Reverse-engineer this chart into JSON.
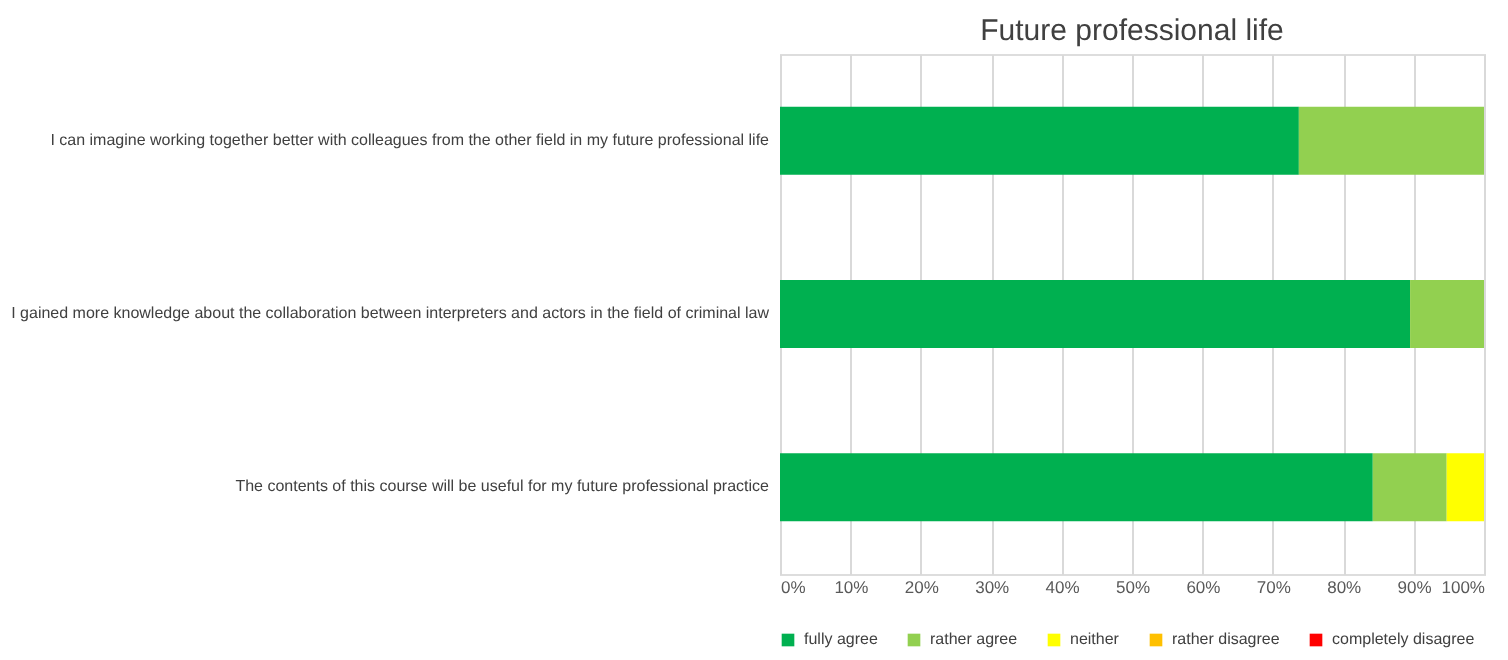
{
  "chart_data": {
    "type": "bar",
    "orientation": "horizontal",
    "stacked": true,
    "title": "Future professional life",
    "categories": [
      "I can imagine working together better with colleagues from the other field in my future professional life",
      "I gained more knowledge about the collaboration between interpreters and actors in the field of criminal law",
      "The contents of this course will be useful for my future professional practice"
    ],
    "series": [
      {
        "name": "fully agree",
        "color": "#00b050",
        "values": [
          73.7,
          89.5,
          84.2
        ]
      },
      {
        "name": "rather agree",
        "color": "#92d050",
        "values": [
          26.3,
          10.5,
          10.5
        ]
      },
      {
        "name": "neither",
        "color": "#ffff00",
        "values": [
          0,
          0,
          5.3
        ]
      },
      {
        "name": "rather disagree",
        "color": "#ffc000",
        "values": [
          0,
          0,
          0
        ]
      },
      {
        "name": "completely disagree",
        "color": "#ff0000",
        "values": [
          0,
          0,
          0
        ]
      }
    ],
    "xlim": [
      0,
      100
    ],
    "xticks": [
      {
        "value": 0,
        "label": "0%"
      },
      {
        "value": 10,
        "label": "10%"
      },
      {
        "value": 20,
        "label": "20%"
      },
      {
        "value": 30,
        "label": "30%"
      },
      {
        "value": 40,
        "label": "40%"
      },
      {
        "value": 50,
        "label": "50%"
      },
      {
        "value": 60,
        "label": "60%"
      },
      {
        "value": 70,
        "label": "70%"
      },
      {
        "value": 80,
        "label": "80%"
      },
      {
        "value": 90,
        "label": "90%"
      },
      {
        "value": 100,
        "label": "100%"
      }
    ],
    "grid": "x",
    "legend": "bottom"
  }
}
